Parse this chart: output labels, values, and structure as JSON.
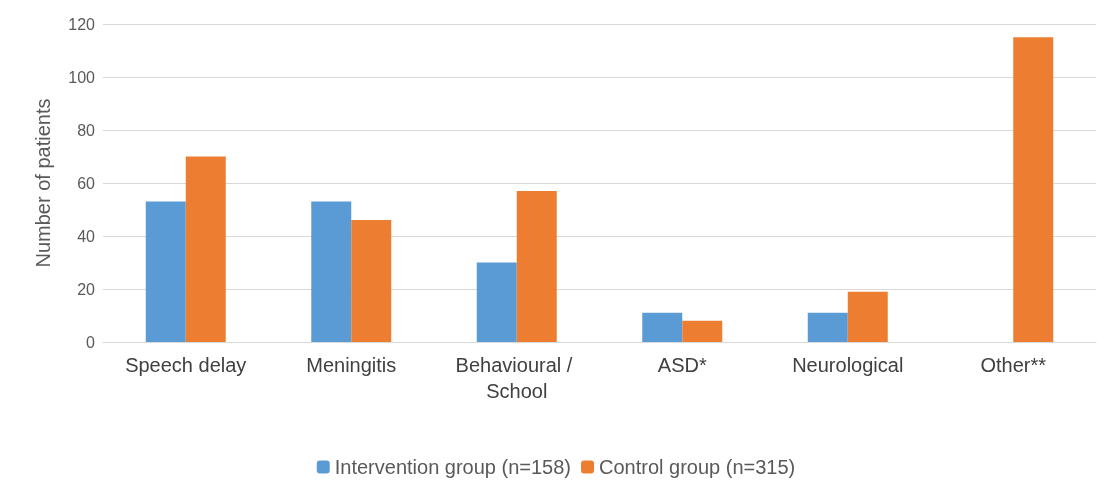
{
  "chart_data": {
    "type": "bar",
    "ylabel": "Number of patients",
    "categories": [
      "Speech delay",
      "Meningitis",
      "Behavioural / School",
      "ASD*",
      "Neurological",
      "Other**"
    ],
    "series": [
      {
        "name": "Intervention group (n=158)",
        "color": "#5b9bd5",
        "values": [
          53,
          53,
          30,
          11,
          11,
          0
        ]
      },
      {
        "name": "Control group (n=315)",
        "color": "#ed7d31",
        "values": [
          70,
          46,
          57,
          8,
          19,
          115
        ]
      }
    ],
    "ylim": [
      0,
      120
    ],
    "yticks": [
      0,
      20,
      40,
      60,
      80,
      100,
      120
    ],
    "grid": "y",
    "legend": "bottom"
  }
}
